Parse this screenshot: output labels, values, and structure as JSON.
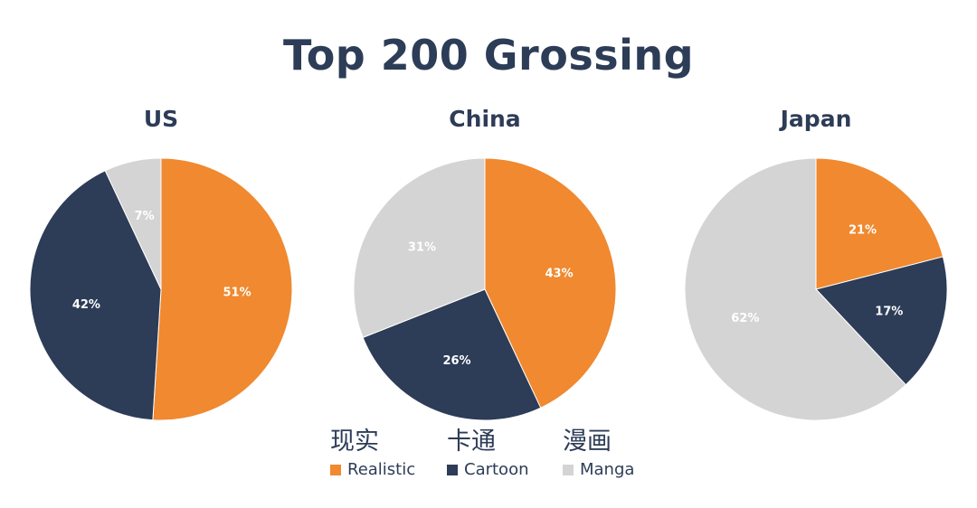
{
  "colors": {
    "realistic": "#F0892F",
    "cartoon": "#2D3C57",
    "manga": "#D4D4D4",
    "text_dark": "#2D3C57",
    "label_light": "#ffffff"
  },
  "chart_title": "Top 200 Grossing",
  "legend": [
    {
      "cn": "现实",
      "en": "Realistic",
      "key": "realistic"
    },
    {
      "cn": "卡通",
      "en": "Cartoon",
      "key": "cartoon"
    },
    {
      "cn": "漫画",
      "en": "Manga",
      "key": "manga"
    }
  ],
  "chart_data": [
    {
      "type": "pie",
      "title": "US",
      "categories": [
        "Realistic",
        "Cartoon",
        "Manga"
      ],
      "values": [
        51,
        42,
        7
      ],
      "labels": [
        "51%",
        "42%",
        "7%"
      ]
    },
    {
      "type": "pie",
      "title": "China",
      "categories": [
        "Realistic",
        "Cartoon",
        "Manga"
      ],
      "values": [
        43,
        26,
        31
      ],
      "labels": [
        "43%",
        "26%",
        "31%"
      ]
    },
    {
      "type": "pie",
      "title": "Japan",
      "categories": [
        "Realistic",
        "Cartoon",
        "Manga"
      ],
      "values": [
        21,
        17,
        62
      ],
      "labels": [
        "21%",
        "17%",
        "62%"
      ]
    }
  ]
}
